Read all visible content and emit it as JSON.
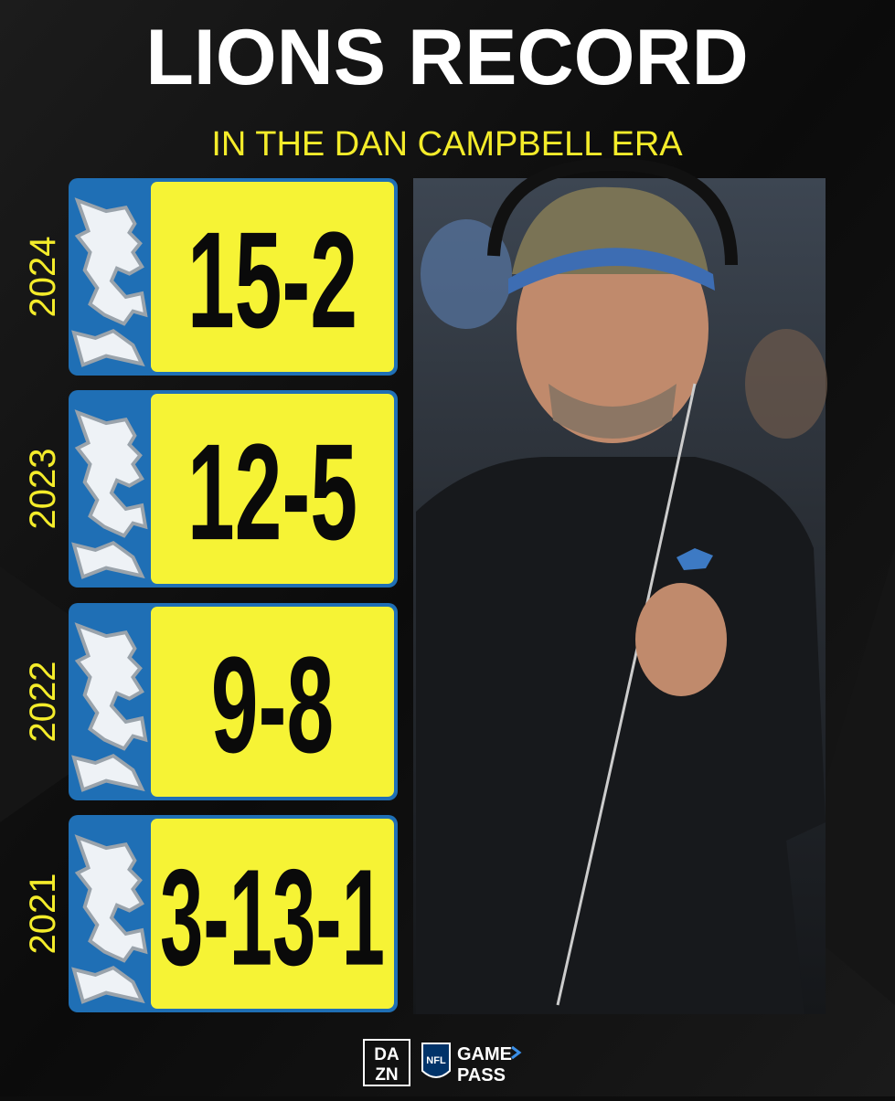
{
  "header": {
    "title": "LIONS RECORD",
    "subtitle": "IN THE DAN CAMPBELL ERA"
  },
  "seasons": [
    {
      "year": "2024",
      "record": "15-2"
    },
    {
      "year": "2023",
      "record": "12-5"
    },
    {
      "year": "2022",
      "record": "9-8"
    },
    {
      "year": "2021",
      "record": "3-13-1"
    }
  ],
  "footer": {
    "brand_top": "DA",
    "brand_bottom": "ZN",
    "league": "NFL",
    "product_top": "GAME",
    "product_bottom": "PASS"
  }
}
